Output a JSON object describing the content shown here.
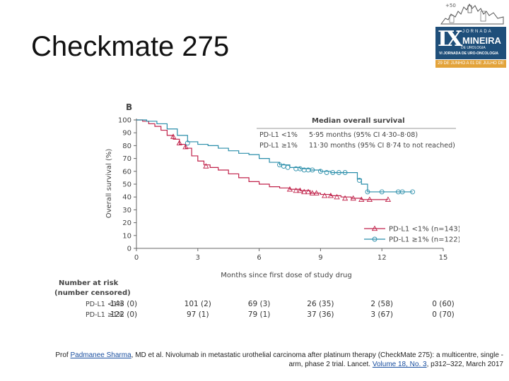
{
  "slide": {
    "title": "Checkmate 275"
  },
  "logo": {
    "roman": "IX",
    "line1": "JORNADA",
    "line2": "MINEIRA",
    "line3": "DE UROLOGIA",
    "line4": "VI JORNADA DE URO-ONCOLOGIA",
    "dates": "29 DE JUNHO A 01 DE JULHO DE 2017",
    "place": "OURO PRETO - MINAS GERAIS",
    "badge_color": "#1f4f7a",
    "strip_color": "#e3a33a"
  },
  "chart_data": {
    "type": "line",
    "panel_label": "B",
    "ylabel": "Overall survival (%)",
    "xlabel": "Months since first dose of study drug",
    "xlim": [
      0,
      15
    ],
    "ylim": [
      0,
      100
    ],
    "x_ticks": [
      0,
      3,
      6,
      9,
      12,
      15
    ],
    "y_ticks": [
      0,
      10,
      20,
      30,
      40,
      50,
      60,
      70,
      80,
      90,
      100
    ],
    "grid": false,
    "median_box": {
      "heading": "Median overall survival",
      "rows": [
        {
          "group": "PD-L1 <1%",
          "text": "5·95 months (95% CI 4·30–8·08)"
        },
        {
          "group": "PD-L1 ≥1%",
          "text": "11·30 months (95% CI 8·74 to not reached)"
        }
      ]
    },
    "legend_position": "bottom-right",
    "series": [
      {
        "name": "PD-L1 <1% (n=143)",
        "color": "#c0224a",
        "marker": "triangle",
        "points": [
          [
            0,
            100
          ],
          [
            0.3,
            99
          ],
          [
            0.6,
            97
          ],
          [
            0.9,
            95
          ],
          [
            1.2,
            92
          ],
          [
            1.5,
            88
          ],
          [
            1.8,
            85
          ],
          [
            2.1,
            81
          ],
          [
            2.4,
            78
          ],
          [
            2.7,
            72
          ],
          [
            3.0,
            68
          ],
          [
            3.3,
            65
          ],
          [
            3.6,
            63
          ],
          [
            4.0,
            61
          ],
          [
            4.5,
            58
          ],
          [
            5.0,
            55
          ],
          [
            5.5,
            52
          ],
          [
            6.0,
            50
          ],
          [
            6.5,
            48
          ],
          [
            7.0,
            47
          ],
          [
            7.5,
            46
          ],
          [
            8.0,
            45
          ],
          [
            8.5,
            43
          ],
          [
            9.0,
            42
          ],
          [
            9.5,
            41
          ],
          [
            10.0,
            40
          ],
          [
            10.5,
            39
          ],
          [
            11.0,
            38
          ],
          [
            11.5,
            38
          ],
          [
            12.0,
            38
          ],
          [
            12.3,
            38
          ]
        ],
        "censored": [
          [
            1.8,
            87
          ],
          [
            2.1,
            82
          ],
          [
            2.4,
            79
          ],
          [
            3.4,
            64
          ],
          [
            7.5,
            46
          ],
          [
            7.8,
            45
          ],
          [
            8.0,
            45
          ],
          [
            8.2,
            44
          ],
          [
            8.4,
            44
          ],
          [
            8.6,
            43
          ],
          [
            8.8,
            43
          ],
          [
            9.2,
            41
          ],
          [
            9.5,
            41
          ],
          [
            9.8,
            40
          ],
          [
            10.2,
            39
          ],
          [
            10.6,
            39
          ],
          [
            11.0,
            38
          ],
          [
            11.4,
            38
          ],
          [
            12.3,
            38
          ]
        ]
      },
      {
        "name": "PD-L1 ≥1% (n=122)",
        "color": "#2a8eaa",
        "marker": "circle",
        "points": [
          [
            0,
            100
          ],
          [
            0.5,
            99
          ],
          [
            1.0,
            97
          ],
          [
            1.5,
            93
          ],
          [
            2.0,
            88
          ],
          [
            2.5,
            83
          ],
          [
            3.0,
            81
          ],
          [
            3.5,
            80
          ],
          [
            4.0,
            78
          ],
          [
            4.5,
            76
          ],
          [
            5.0,
            74
          ],
          [
            5.5,
            73
          ],
          [
            6.0,
            70
          ],
          [
            6.5,
            67
          ],
          [
            7.0,
            65
          ],
          [
            7.5,
            63
          ],
          [
            8.0,
            62
          ],
          [
            8.5,
            61
          ],
          [
            9.0,
            60
          ],
          [
            9.5,
            59
          ],
          [
            10.0,
            59
          ],
          [
            10.6,
            59
          ],
          [
            10.8,
            54
          ],
          [
            11.0,
            50
          ],
          [
            11.3,
            44
          ],
          [
            12.0,
            44
          ],
          [
            13.0,
            44
          ],
          [
            13.5,
            44
          ]
        ],
        "censored": [
          [
            2.5,
            82
          ],
          [
            7.0,
            65
          ],
          [
            7.2,
            64
          ],
          [
            7.4,
            63
          ],
          [
            7.8,
            62
          ],
          [
            8.0,
            62
          ],
          [
            8.2,
            61
          ],
          [
            8.4,
            61
          ],
          [
            8.6,
            61
          ],
          [
            9.0,
            60
          ],
          [
            9.3,
            59
          ],
          [
            9.6,
            59
          ],
          [
            9.9,
            59
          ],
          [
            10.2,
            59
          ],
          [
            10.9,
            53
          ],
          [
            11.3,
            44
          ],
          [
            12.0,
            44
          ],
          [
            12.8,
            44
          ],
          [
            13.0,
            44
          ],
          [
            13.5,
            44
          ]
        ]
      }
    ],
    "risk_table": {
      "title_line1": "Number at risk",
      "title_line2": "(number censored)",
      "times": [
        0,
        3,
        6,
        9,
        12,
        15
      ],
      "rows": [
        {
          "label": "PD-L1 <1%",
          "values": [
            "143 (0)",
            "101 (2)",
            "69 (3)",
            "26 (35)",
            "2 (58)",
            "0 (60)"
          ]
        },
        {
          "label": "PD-L1 ≥1%",
          "values": [
            "122 (0)",
            "97 (1)",
            "79 (1)",
            "37 (36)",
            "3 (67)",
            "0 (70)"
          ]
        }
      ]
    }
  },
  "citation": {
    "part1": "Prof ",
    "author_link": "Padmanee Sharma",
    "part2": ", MD et al. Nivolumab in metastatic urothelial carcinoma after platinum therapy (CheckMate 275): a multicentre, single -arm, phase 2 trial. Lancet. ",
    "volume_link": "Volume 18, No. 3",
    "part3": ", p312–322, March 2017"
  }
}
